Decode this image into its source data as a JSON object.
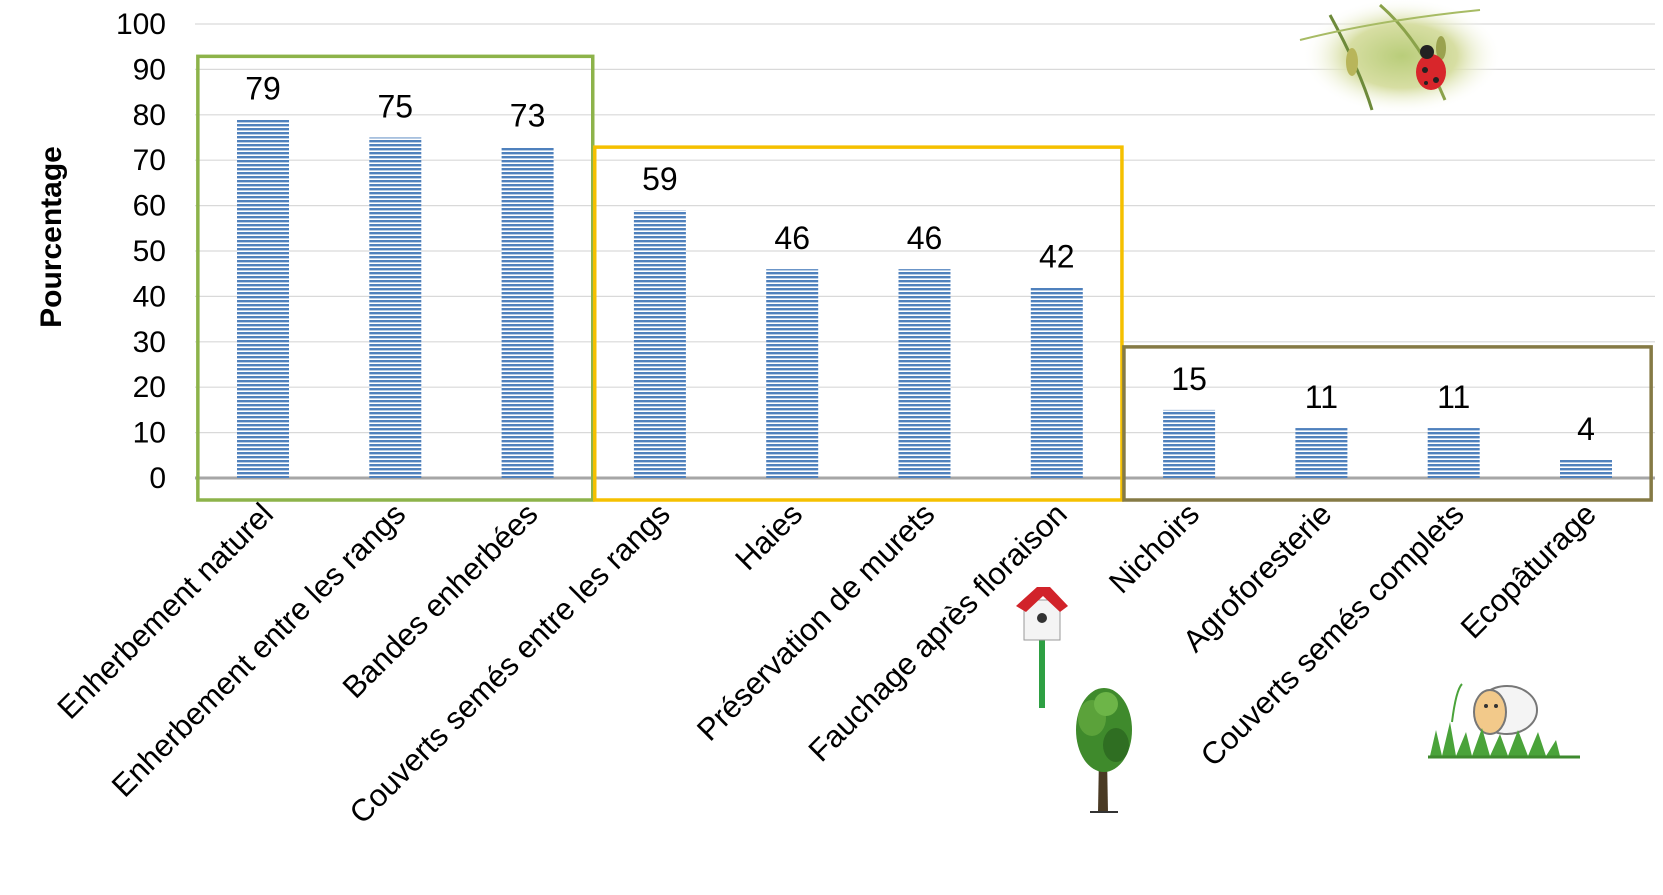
{
  "chart_data": {
    "type": "bar",
    "ylabel": "Pourcentage",
    "ylim": [
      0,
      100
    ],
    "yticks": [
      0,
      10,
      20,
      30,
      40,
      50,
      60,
      70,
      80,
      90,
      100
    ],
    "grid": true,
    "categories": [
      "Enherbement naturel",
      "Enherbement  entre les rangs",
      "Bandes enherbées",
      "Couverts semés entre les rangs",
      "Haies",
      "Préservation de murets",
      "Fauchage après floraison",
      "Nichoirs",
      "Agroforesterie",
      "Couverts semés complets",
      "Ecopâturage"
    ],
    "values": [
      79,
      75,
      73,
      59,
      46,
      46,
      42,
      15,
      11,
      11,
      4
    ],
    "groups": [
      {
        "categories": [
          "Enherbement naturel",
          "Enherbement  entre les rangs",
          "Bandes enherbées"
        ],
        "color": "#8db34a"
      },
      {
        "categories": [
          "Couverts semés entre les rangs",
          "Haies",
          "Préservation de murets",
          "Fauchage après floraison"
        ],
        "color": "#f5c000"
      },
      {
        "categories": [
          "Nichoirs",
          "Agroforesterie",
          "Couverts semés complets",
          "Ecopâturage"
        ],
        "color": "#857a45"
      }
    ],
    "bar_color": "#4f81bd",
    "icons": [
      "ladybug-photo",
      "birdhouse-icon",
      "tree-icon",
      "sheep-icon"
    ]
  }
}
